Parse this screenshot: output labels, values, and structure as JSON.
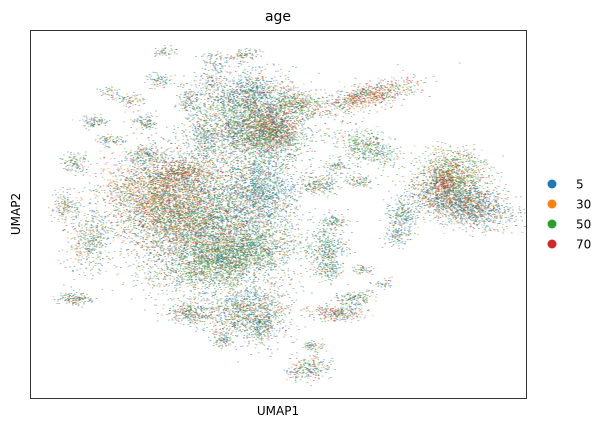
{
  "chart_data": {
    "type": "scatter",
    "title": "age",
    "xlabel": "UMAP1",
    "ylabel": "UMAP2",
    "axis_ticks": false,
    "grid": false,
    "legend_placement": "right",
    "series": [
      {
        "name": "5",
        "color": "#1f77b4"
      },
      {
        "name": "30",
        "color": "#ff7f0e"
      },
      {
        "name": "50",
        "color": "#2ca02c"
      },
      {
        "name": "70",
        "color": "#d62728"
      }
    ],
    "clusters": [
      {
        "cx": 0.35,
        "cy": 0.52,
        "rx": 0.14,
        "ry": 0.16,
        "rot": -25,
        "n": 5200,
        "mix": [
          0.38,
          0.18,
          0.3,
          0.14
        ]
      },
      {
        "cx": 0.25,
        "cy": 0.46,
        "rx": 0.09,
        "ry": 0.11,
        "rot": -30,
        "n": 1700,
        "mix": [
          0.22,
          0.4,
          0.2,
          0.18
        ]
      },
      {
        "cx": 0.4,
        "cy": 0.62,
        "rx": 0.13,
        "ry": 0.06,
        "rot": -20,
        "n": 1800,
        "mix": [
          0.3,
          0.12,
          0.48,
          0.1
        ]
      },
      {
        "cx": 0.47,
        "cy": 0.44,
        "rx": 0.06,
        "ry": 0.09,
        "rot": -10,
        "n": 1000,
        "mix": [
          0.65,
          0.1,
          0.18,
          0.07
        ]
      },
      {
        "cx": 0.44,
        "cy": 0.77,
        "rx": 0.08,
        "ry": 0.07,
        "rot": 0,
        "n": 1200,
        "mix": [
          0.45,
          0.15,
          0.28,
          0.12
        ]
      },
      {
        "cx": 0.3,
        "cy": 0.39,
        "rx": 0.06,
        "ry": 0.04,
        "rot": -10,
        "n": 500,
        "mix": [
          0.25,
          0.15,
          0.2,
          0.4
        ]
      },
      {
        "cx": 0.6,
        "cy": 0.6,
        "rx": 0.035,
        "ry": 0.06,
        "rot": 0,
        "n": 380,
        "mix": [
          0.45,
          0.1,
          0.38,
          0.07
        ]
      },
      {
        "cx": 0.58,
        "cy": 0.42,
        "rx": 0.035,
        "ry": 0.025,
        "rot": 0,
        "n": 200,
        "mix": [
          0.4,
          0.15,
          0.35,
          0.1
        ]
      },
      {
        "cx": 0.12,
        "cy": 0.57,
        "rx": 0.04,
        "ry": 0.08,
        "rot": 10,
        "n": 420,
        "mix": [
          0.35,
          0.25,
          0.3,
          0.1
        ]
      },
      {
        "cx": 0.07,
        "cy": 0.48,
        "rx": 0.025,
        "ry": 0.04,
        "rot": 0,
        "n": 150,
        "mix": [
          0.4,
          0.2,
          0.3,
          0.1
        ]
      },
      {
        "cx": 0.09,
        "cy": 0.36,
        "rx": 0.025,
        "ry": 0.025,
        "rot": 0,
        "n": 110,
        "mix": [
          0.4,
          0.2,
          0.3,
          0.1
        ]
      },
      {
        "cx": 0.13,
        "cy": 0.25,
        "rx": 0.025,
        "ry": 0.015,
        "rot": 0,
        "n": 90,
        "mix": [
          0.45,
          0.2,
          0.25,
          0.1
        ]
      },
      {
        "cx": 0.23,
        "cy": 0.34,
        "rx": 0.035,
        "ry": 0.025,
        "rot": -20,
        "n": 170,
        "mix": [
          0.45,
          0.15,
          0.3,
          0.1
        ]
      },
      {
        "cx": 0.23,
        "cy": 0.25,
        "rx": 0.025,
        "ry": 0.02,
        "rot": 0,
        "n": 110,
        "mix": [
          0.4,
          0.25,
          0.25,
          0.1
        ]
      },
      {
        "cx": 0.32,
        "cy": 0.19,
        "rx": 0.02,
        "ry": 0.03,
        "rot": 0,
        "n": 110,
        "mix": [
          0.4,
          0.2,
          0.3,
          0.1
        ]
      },
      {
        "cx": 0.37,
        "cy": 0.09,
        "rx": 0.025,
        "ry": 0.025,
        "rot": -30,
        "n": 90,
        "mix": [
          0.5,
          0.15,
          0.25,
          0.1
        ]
      },
      {
        "cx": 0.36,
        "cy": 0.14,
        "rx": 0.02,
        "ry": 0.02,
        "rot": 0,
        "n": 60,
        "mix": [
          0.45,
          0.15,
          0.3,
          0.1
        ]
      },
      {
        "cx": 0.26,
        "cy": 0.14,
        "rx": 0.025,
        "ry": 0.02,
        "rot": 0,
        "n": 80,
        "mix": [
          0.45,
          0.15,
          0.3,
          0.1
        ]
      },
      {
        "cx": 0.2,
        "cy": 0.19,
        "rx": 0.025,
        "ry": 0.02,
        "rot": 0,
        "n": 80,
        "mix": [
          0.4,
          0.25,
          0.25,
          0.1
        ]
      },
      {
        "cx": 0.43,
        "cy": 0.07,
        "rx": 0.03,
        "ry": 0.015,
        "rot": -15,
        "n": 90,
        "mix": [
          0.3,
          0.15,
          0.25,
          0.3
        ]
      },
      {
        "cx": 0.16,
        "cy": 0.3,
        "rx": 0.03,
        "ry": 0.015,
        "rot": 0,
        "n": 70,
        "mix": [
          0.4,
          0.2,
          0.3,
          0.1
        ]
      },
      {
        "cx": 0.27,
        "cy": 0.06,
        "rx": 0.02,
        "ry": 0.015,
        "rot": 0,
        "n": 50,
        "mix": [
          0.4,
          0.2,
          0.3,
          0.1
        ]
      },
      {
        "cx": 0.45,
        "cy": 0.27,
        "rx": 0.1,
        "ry": 0.1,
        "rot": -20,
        "n": 2600,
        "mix": [
          0.36,
          0.12,
          0.38,
          0.14
        ]
      },
      {
        "cx": 0.49,
        "cy": 0.27,
        "rx": 0.05,
        "ry": 0.07,
        "rot": -15,
        "n": 700,
        "mix": [
          0.2,
          0.15,
          0.25,
          0.4
        ]
      },
      {
        "cx": 0.43,
        "cy": 0.17,
        "rx": 0.08,
        "ry": 0.05,
        "rot": -10,
        "n": 700,
        "mix": [
          0.55,
          0.1,
          0.25,
          0.1
        ]
      },
      {
        "cx": 0.54,
        "cy": 0.2,
        "rx": 0.05,
        "ry": 0.035,
        "rot": 15,
        "n": 340,
        "mix": [
          0.15,
          0.15,
          0.5,
          0.2
        ]
      },
      {
        "cx": 0.35,
        "cy": 0.28,
        "rx": 0.025,
        "ry": 0.07,
        "rot": -10,
        "n": 240,
        "mix": [
          0.5,
          0.1,
          0.3,
          0.1
        ]
      },
      {
        "cx": 0.68,
        "cy": 0.18,
        "rx": 0.09,
        "ry": 0.03,
        "rot": -20,
        "n": 750,
        "mix": [
          0.25,
          0.3,
          0.2,
          0.25
        ]
      },
      {
        "cx": 0.68,
        "cy": 0.32,
        "rx": 0.06,
        "ry": 0.04,
        "rot": 30,
        "n": 450,
        "mix": [
          0.3,
          0.1,
          0.5,
          0.1
        ]
      },
      {
        "cx": 0.62,
        "cy": 0.37,
        "rx": 0.025,
        "ry": 0.02,
        "rot": 0,
        "n": 90,
        "mix": [
          0.4,
          0.2,
          0.3,
          0.1
        ]
      },
      {
        "cx": 0.66,
        "cy": 0.41,
        "rx": 0.03,
        "ry": 0.015,
        "rot": 0,
        "n": 90,
        "mix": [
          0.4,
          0.2,
          0.3,
          0.1
        ]
      },
      {
        "cx": 0.87,
        "cy": 0.47,
        "rx": 0.09,
        "ry": 0.05,
        "rot": 20,
        "n": 1900,
        "mix": [
          0.5,
          0.3,
          0.12,
          0.08
        ]
      },
      {
        "cx": 0.85,
        "cy": 0.39,
        "rx": 0.06,
        "ry": 0.06,
        "rot": 0,
        "n": 900,
        "mix": [
          0.15,
          0.22,
          0.48,
          0.15
        ]
      },
      {
        "cx": 0.83,
        "cy": 0.41,
        "rx": 0.025,
        "ry": 0.03,
        "rot": 0,
        "n": 200,
        "mix": [
          0.1,
          0.1,
          0.2,
          0.6
        ]
      },
      {
        "cx": 0.75,
        "cy": 0.5,
        "rx": 0.03,
        "ry": 0.04,
        "rot": 0,
        "n": 230,
        "mix": [
          0.5,
          0.15,
          0.25,
          0.1
        ]
      },
      {
        "cx": 0.74,
        "cy": 0.56,
        "rx": 0.025,
        "ry": 0.025,
        "rot": 0,
        "n": 110,
        "mix": [
          0.55,
          0.1,
          0.25,
          0.1
        ]
      },
      {
        "cx": 0.62,
        "cy": 0.77,
        "rx": 0.05,
        "ry": 0.02,
        "rot": 5,
        "n": 260,
        "mix": [
          0.3,
          0.3,
          0.2,
          0.2
        ]
      },
      {
        "cx": 0.65,
        "cy": 0.73,
        "rx": 0.04,
        "ry": 0.02,
        "rot": -5,
        "n": 160,
        "mix": [
          0.35,
          0.15,
          0.4,
          0.1
        ]
      },
      {
        "cx": 0.56,
        "cy": 0.92,
        "rx": 0.04,
        "ry": 0.03,
        "rot": -20,
        "n": 240,
        "mix": [
          0.5,
          0.15,
          0.2,
          0.15
        ]
      },
      {
        "cx": 0.57,
        "cy": 0.86,
        "rx": 0.02,
        "ry": 0.015,
        "rot": 0,
        "n": 60,
        "mix": [
          0.4,
          0.2,
          0.3,
          0.1
        ]
      },
      {
        "cx": 0.09,
        "cy": 0.73,
        "rx": 0.03,
        "ry": 0.015,
        "rot": 0,
        "n": 150,
        "mix": [
          0.4,
          0.2,
          0.3,
          0.1
        ]
      },
      {
        "cx": 0.32,
        "cy": 0.77,
        "rx": 0.04,
        "ry": 0.03,
        "rot": 0,
        "n": 280,
        "mix": [
          0.4,
          0.2,
          0.25,
          0.15
        ]
      },
      {
        "cx": 0.39,
        "cy": 0.84,
        "rx": 0.02,
        "ry": 0.02,
        "rot": 0,
        "n": 80,
        "mix": [
          0.4,
          0.2,
          0.3,
          0.1
        ]
      },
      {
        "cx": 0.47,
        "cy": 0.81,
        "rx": 0.02,
        "ry": 0.035,
        "rot": 10,
        "n": 110,
        "mix": [
          0.4,
          0.2,
          0.3,
          0.1
        ]
      },
      {
        "cx": 0.67,
        "cy": 0.65,
        "rx": 0.02,
        "ry": 0.015,
        "rot": 0,
        "n": 50,
        "mix": [
          0.4,
          0.2,
          0.3,
          0.1
        ]
      },
      {
        "cx": 0.71,
        "cy": 0.69,
        "rx": 0.02,
        "ry": 0.015,
        "rot": 0,
        "n": 40,
        "mix": [
          0.4,
          0.2,
          0.3,
          0.1
        ]
      },
      {
        "cx": 0.61,
        "cy": 0.52,
        "rx": 0.03,
        "ry": 0.02,
        "rot": 0,
        "n": 100,
        "mix": [
          0.4,
          0.2,
          0.3,
          0.1
        ]
      },
      {
        "cx": 0.6,
        "cy": 0.66,
        "rx": 0.025,
        "ry": 0.02,
        "rot": 0,
        "n": 80,
        "mix": [
          0.45,
          0.15,
          0.3,
          0.1
        ]
      },
      {
        "cx": 0.16,
        "cy": 0.17,
        "rx": 0.02,
        "ry": 0.015,
        "rot": 0,
        "n": 40,
        "mix": [
          0.4,
          0.2,
          0.3,
          0.1
        ]
      }
    ]
  }
}
